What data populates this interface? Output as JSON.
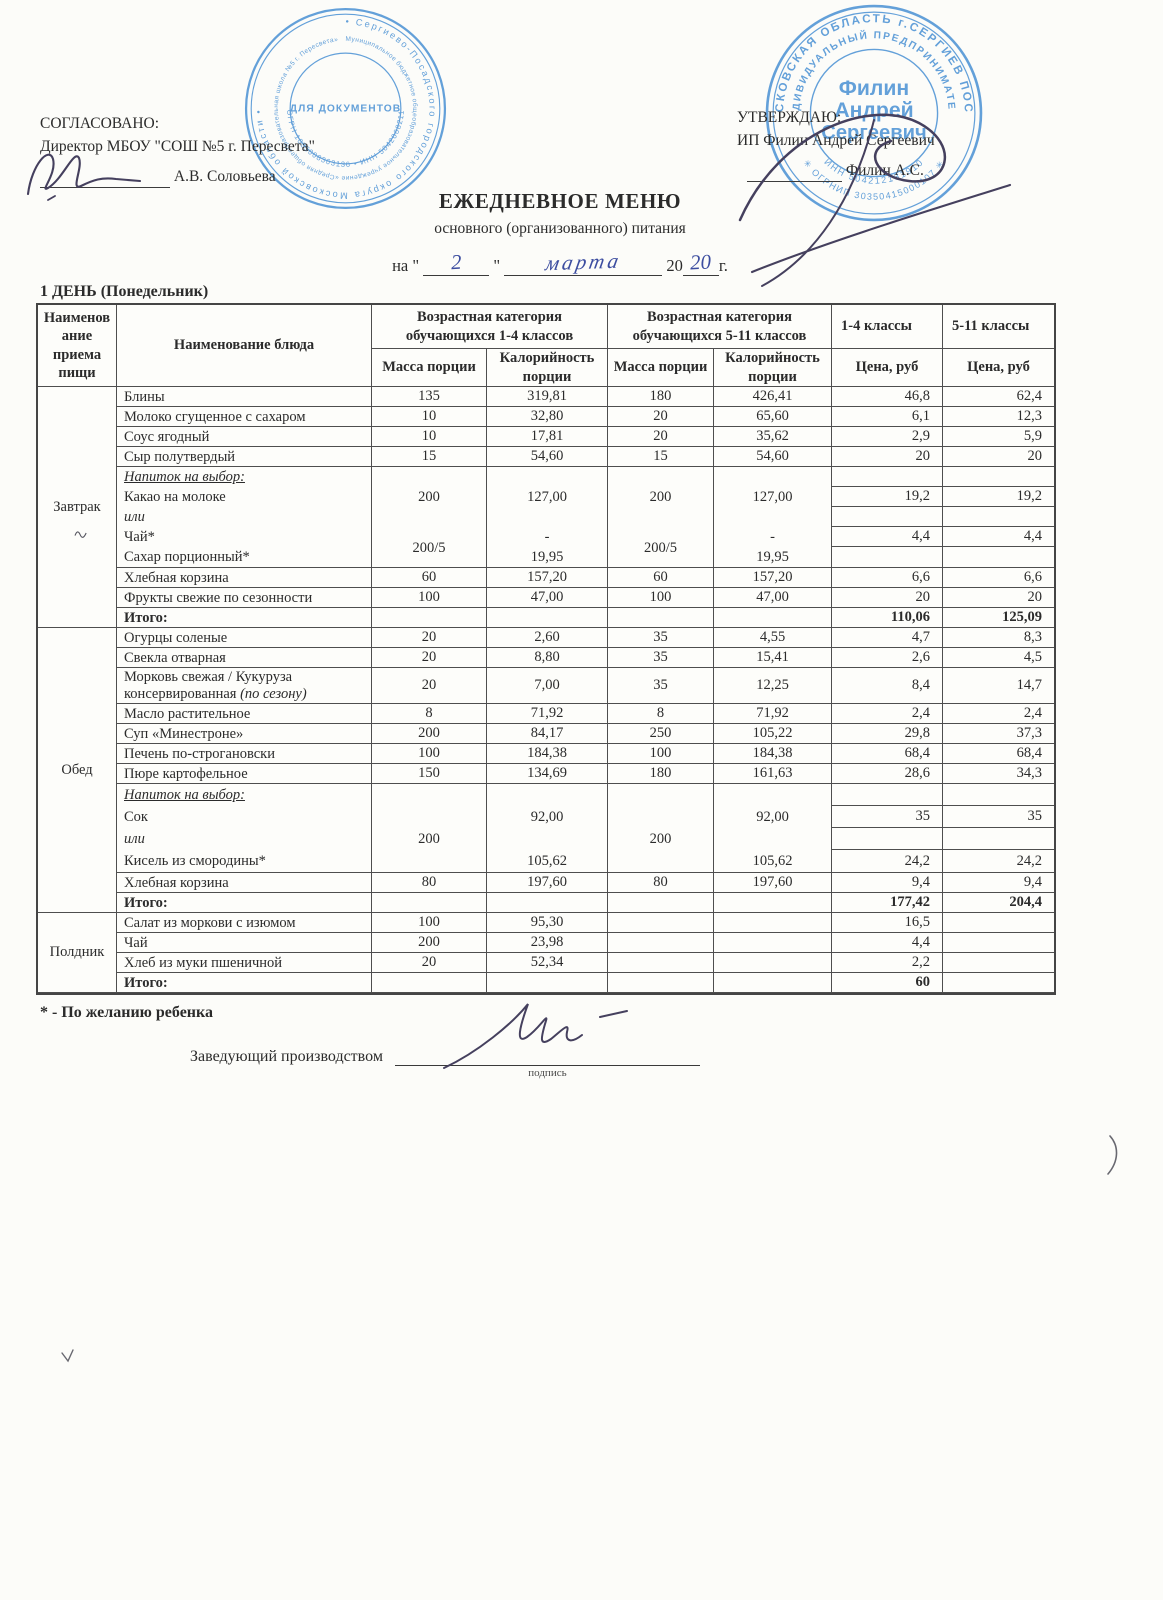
{
  "header": {
    "agreed": {
      "label": "СОГЛАСОВАНО:",
      "line": "Директор МБОУ \"СОШ №5 г. Пересвета\"",
      "name": "А.В. Соловьева"
    },
    "approved": {
      "label": "УТВЕРЖДАЮ:",
      "line": "ИП Филин Андрей Сергеевич",
      "name": "Филин А.С."
    },
    "title": "ЕЖЕДНЕВНОЕ МЕНЮ",
    "subtitle": "основного (организованного) питания",
    "date": {
      "pre": "на \"",
      "day": "2",
      "q2": "\"",
      "month": "марта",
      "year_printed": "20",
      "year_written": "20",
      "post": "г."
    }
  },
  "stamps": {
    "school": {
      "center": "ДЛЯ\nДОКУМЕНТОВ",
      "ring_outer": "• Сергиево-Посадского городского округа Московской области •",
      "ring_mid": "Муниципальное бюджетное общеобразовательное учреждение «Средняя общеобразовательная школа №5 г. Пересвета»",
      "ring_numbers": "ОГРН 1035008363136 • ИНН 5042068211"
    },
    "ip": {
      "center_lines": [
        "Филин",
        "Андрей",
        "Сергеевич"
      ],
      "ring_outer": "МОСКОВСКАЯ ОБЛАСТЬ г.СЕРГИЕВ ПОСАД",
      "ring_inner": "ИНДИВИДУАЛЬНЫЙ ПРЕДПРИНИМАТЕЛЬ",
      "ogrnip": "✳ ОГРНИП 30350415000107 ✳",
      "inn": "ИНН 504212131910"
    }
  },
  "day_heading": "1 ДЕНЬ (Понедельник)",
  "table": {
    "col_headers": {
      "meal": "Наименов\nание\nприема\nпищи",
      "dish": "Наименование блюда",
      "age14": "Возрастная категория\nобучающихся 1-4 классов",
      "age511": "Возрастная категория\nобучающихся 5-11 классов",
      "cls14": "1-4 классы",
      "cls511": "5-11 классы",
      "mass": "Масса порции",
      "cal": "Калорийность\nпорции",
      "price": "Цена, руб"
    },
    "sections": [
      {
        "meal": "Завтрак",
        "mark": true,
        "rows": [
          {
            "dish": "Блины",
            "m14": "135",
            "k14": "319,81",
            "m511": "180",
            "k511": "426,41",
            "p14": "46,8",
            "p511": "62,4"
          },
          {
            "dish": "Молоко сгущенное с сахаром",
            "m14": "10",
            "k14": "32,80",
            "m511": "20",
            "k511": "65,60",
            "p14": "6,1",
            "p511": "12,3"
          },
          {
            "dish": "Соус ягодный",
            "m14": "10",
            "k14": "17,81",
            "m511": "20",
            "k511": "35,62",
            "p14": "2,9",
            "p511": "5,9"
          },
          {
            "dish": "Сыр полутвердый",
            "m14": "15",
            "k14": "54,60",
            "m511": "15",
            "k511": "54,60",
            "p14": "20",
            "p511": "20"
          },
          {
            "type": "drinks",
            "lines": [
              {
                "text": "Напиток на выбор:",
                "style": "opt"
              },
              {
                "text": "Какао на молоке"
              },
              {
                "text": "или",
                "style": "it"
              },
              {
                "text": "Чай*"
              },
              {
                "text": "Сахар порционный*"
              }
            ],
            "m14": [
              "",
              "200",
              "",
              "200/5",
              ""
            ],
            "k14": [
              "",
              "127,00",
              "",
              "-",
              "19,95"
            ],
            "m511": [
              "",
              "200",
              "",
              "200/5",
              ""
            ],
            "k511": [
              "",
              "127,00",
              "",
              "-",
              "19,95"
            ],
            "p14": [
              "",
              "19,2",
              "",
              "4,4",
              ""
            ],
            "p511": [
              "",
              "19,2",
              "",
              "4,4",
              ""
            ]
          },
          {
            "dish": "Хлебная корзина",
            "m14": "60",
            "k14": "157,20",
            "m511": "60",
            "k511": "157,20",
            "p14": "6,6",
            "p511": "6,6"
          },
          {
            "dish": "Фрукты свежие по сезонности",
            "m14": "100",
            "k14": "47,00",
            "m511": "100",
            "k511": "47,00",
            "p14": "20",
            "p511": "20"
          },
          {
            "type": "total",
            "dish": "Итого:",
            "m14": "",
            "k14": "",
            "m511": "",
            "k511": "",
            "p14": "110,06",
            "p511": "125,09"
          }
        ]
      },
      {
        "meal": "Обед",
        "rows": [
          {
            "dish": "Огурцы соленые",
            "m14": "20",
            "k14": "2,60",
            "m511": "35",
            "k511": "4,55",
            "p14": "4,7",
            "p511": "8,3"
          },
          {
            "dish": "Свекла отварная",
            "m14": "20",
            "k14": "8,80",
            "m511": "35",
            "k511": "15,41",
            "p14": "2,6",
            "p511": "4,5"
          },
          {
            "dish": "Морковь свежая / Кукуруза консервированная",
            "dish_italic": "(по сезону)",
            "m14": "20",
            "k14": "7,00",
            "m511": "35",
            "k511": "12,25",
            "p14": "8,4",
            "p511": "14,7"
          },
          {
            "dish": "Масло растительное",
            "m14": "8",
            "k14": "71,92",
            "m511": "8",
            "k511": "71,92",
            "p14": "2,4",
            "p511": "2,4"
          },
          {
            "dish": "Суп «Минестроне»",
            "m14": "200",
            "k14": "84,17",
            "m511": "250",
            "k511": "105,22",
            "p14": "29,8",
            "p511": "37,3"
          },
          {
            "dish": "Печень по-строгановски",
            "m14": "100",
            "k14": "184,38",
            "m511": "100",
            "k511": "184,38",
            "p14": "68,4",
            "p511": "68,4"
          },
          {
            "dish": "Пюре картофельное",
            "m14": "150",
            "k14": "134,69",
            "m511": "180",
            "k511": "161,63",
            "p14": "28,6",
            "p511": "34,3"
          },
          {
            "type": "drinks",
            "lines": [
              {
                "text": "Напиток на выбор:",
                "style": "opt"
              },
              {
                "text": "Сок"
              },
              {
                "text": "или",
                "style": "it"
              },
              {
                "text": "Кисель из смородины*"
              }
            ],
            "m14": [
              "",
              "",
              "200",
              ""
            ],
            "k14": [
              "",
              "92,00",
              "",
              "105,62"
            ],
            "m511": [
              "",
              "",
              "200",
              ""
            ],
            "k511": [
              "",
              "92,00",
              "",
              "105,62"
            ],
            "p14": [
              "",
              "35",
              "",
              "24,2"
            ],
            "p511": [
              "",
              "35",
              "",
              "24,2"
            ]
          },
          {
            "dish": "Хлебная корзина",
            "m14": "80",
            "k14": "197,60",
            "m511": "80",
            "k511": "197,60",
            "p14": "9,4",
            "p511": "9,4"
          },
          {
            "type": "total",
            "dish": "Итого:",
            "m14": "",
            "k14": "",
            "m511": "",
            "k511": "",
            "p14": "177,42",
            "p511": "204,4"
          }
        ]
      },
      {
        "meal": "Полдник",
        "rows": [
          {
            "dish": "Салат из моркови с изюмом",
            "m14": "100",
            "k14": "95,30",
            "m511": "",
            "k511": "",
            "p14": "16,5",
            "p511": ""
          },
          {
            "dish": "Чай",
            "m14": "200",
            "k14": "23,98",
            "m511": "",
            "k511": "",
            "p14": "4,4",
            "p511": ""
          },
          {
            "dish": "Хлеб из муки пшеничной",
            "m14": "20",
            "k14": "52,34",
            "m511": "",
            "k511": "",
            "p14": "2,2",
            "p511": ""
          },
          {
            "type": "total",
            "dish": "Итого:",
            "m14": "",
            "k14": "",
            "m511": "",
            "k511": "",
            "p14": "60",
            "p511": ""
          }
        ]
      }
    ]
  },
  "footer": {
    "note": "* - По желанию ребенка",
    "manager_label": "Заведующий производством",
    "signature_caption": "подпись"
  }
}
